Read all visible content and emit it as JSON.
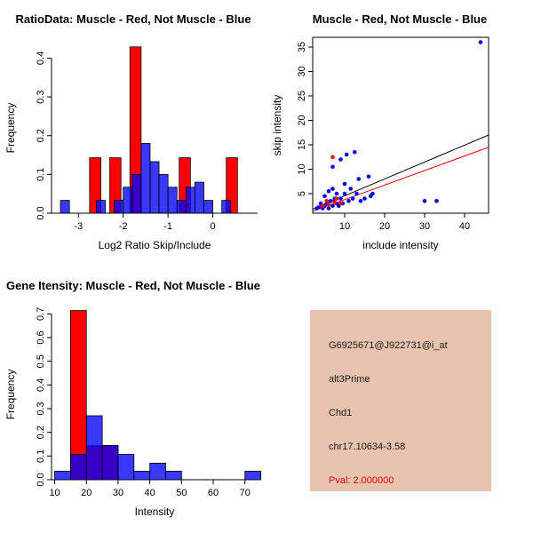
{
  "figure": {
    "background": "#FFFFFF"
  },
  "chart_data": [
    {
      "type": "bar",
      "title": "RatioData: Muscle - Red, Not Muscle - Blue",
      "xlabel": "Log2 Ratio Skip/Include",
      "ylabel": "Frequency",
      "xlim": [
        -3.6,
        1.0
      ],
      "ylim": [
        0,
        0.44
      ],
      "xticks": [
        -3,
        -2,
        -1,
        0
      ],
      "xtick_labels": [
        "-3",
        "-2",
        "-1",
        "0"
      ],
      "yticks": [
        0,
        0.1,
        0.2,
        0.3,
        0.4
      ],
      "ytick_labels": [
        "0.0",
        "0.1",
        "0.2",
        "0.3",
        "0.4"
      ],
      "grid": false,
      "series": [
        {
          "name": "Muscle",
          "color": "#FF0000",
          "opacity": 1,
          "bin_width": 0.25,
          "bars": [
            {
              "x": -2.75,
              "h": 0.143
            },
            {
              "x": -2.3,
              "h": 0.143
            },
            {
              "x": -1.85,
              "h": 0.429
            },
            {
              "x": -0.75,
              "h": 0.143
            },
            {
              "x": 0.3,
              "h": 0.143
            }
          ]
        },
        {
          "name": "Not Muscle",
          "color": "#0000FF",
          "opacity": 0.78,
          "bin_width": 0.2,
          "bars": [
            {
              "x": -3.4,
              "h": 0.033
            },
            {
              "x": -2.6,
              "h": 0.033
            },
            {
              "x": -2.2,
              "h": 0.033
            },
            {
              "x": -2.0,
              "h": 0.067
            },
            {
              "x": -1.8,
              "h": 0.1
            },
            {
              "x": -1.6,
              "h": 0.18
            },
            {
              "x": -1.4,
              "h": 0.133
            },
            {
              "x": -1.2,
              "h": 0.1
            },
            {
              "x": -1.0,
              "h": 0.067
            },
            {
              "x": -0.8,
              "h": 0.033
            },
            {
              "x": -0.6,
              "h": 0.067
            },
            {
              "x": -0.4,
              "h": 0.08
            },
            {
              "x": -0.2,
              "h": 0.033
            },
            {
              "x": 0.2,
              "h": 0.033
            }
          ]
        }
      ]
    },
    {
      "type": "scatter",
      "title": "Muscle - Red, Not Muscle - Blue",
      "xlabel": "include intensity",
      "ylabel": "skip intensity",
      "xlim": [
        2,
        46
      ],
      "ylim": [
        1,
        37
      ],
      "xticks": [
        10,
        20,
        30,
        40
      ],
      "yticks": [
        5,
        10,
        15,
        20,
        25,
        30,
        35
      ],
      "grid": false,
      "series": [
        {
          "name": "Not Muscle",
          "color": "#0000EE",
          "points": [
            [
              3,
              2
            ],
            [
              3.5,
              2.2
            ],
            [
              4,
              3
            ],
            [
              4.5,
              2
            ],
            [
              5,
              2.5
            ],
            [
              5,
              4.5
            ],
            [
              5.5,
              3
            ],
            [
              6,
              2
            ],
            [
              6,
              5.5
            ],
            [
              6.5,
              3.5
            ],
            [
              7,
              2.5
            ],
            [
              7,
              6
            ],
            [
              7,
              10.5
            ],
            [
              7.5,
              4
            ],
            [
              8,
              3
            ],
            [
              8,
              5
            ],
            [
              8.5,
              2.5
            ],
            [
              9,
              4
            ],
            [
              9,
              12
            ],
            [
              9.5,
              3
            ],
            [
              10,
              5
            ],
            [
              10,
              7
            ],
            [
              10.5,
              13
            ],
            [
              11,
              3.5
            ],
            [
              11.5,
              6
            ],
            [
              12,
              4
            ],
            [
              12.5,
              13.5
            ],
            [
              13,
              5
            ],
            [
              13.5,
              8
            ],
            [
              14,
              3.5
            ],
            [
              15,
              4
            ],
            [
              16,
              8.5
            ],
            [
              16.5,
              4.5
            ],
            [
              17,
              5
            ],
            [
              30,
              3.5
            ],
            [
              33,
              3.5
            ],
            [
              44,
              36
            ]
          ]
        },
        {
          "name": "Muscle",
          "color": "#FF0000",
          "points": [
            [
              4.5,
              2.5
            ],
            [
              5.5,
              3.5
            ],
            [
              6,
              2.8
            ],
            [
              7,
              12.5
            ],
            [
              7.5,
              3.2
            ],
            [
              8,
              4
            ],
            [
              9,
              3
            ]
          ]
        }
      ],
      "lines": [
        {
          "name": "fit-all",
          "color": "#000000",
          "from": [
            2,
            1.8
          ],
          "to": [
            46,
            17
          ]
        },
        {
          "name": "fit-muscle",
          "color": "#FF0000",
          "from": [
            2,
            1.4
          ],
          "to": [
            46,
            14.5
          ]
        }
      ]
    },
    {
      "type": "bar",
      "title": "Gene Itensity: Muscle - Red, Not Muscle - Blue",
      "xlabel": "Intensity",
      "ylabel": "Frequency",
      "xlim": [
        9,
        74
      ],
      "ylim": [
        0,
        0.72
      ],
      "xticks": [
        10,
        20,
        30,
        40,
        50,
        60,
        70
      ],
      "xtick_labels": [
        "10",
        "20",
        "30",
        "40",
        "50",
        "60",
        "70"
      ],
      "yticks": [
        0,
        0.1,
        0.2,
        0.3,
        0.4,
        0.5,
        0.6,
        0.7
      ],
      "ytick_labels": [
        "0.0",
        "0.1",
        "0.2",
        "0.3",
        "0.4",
        "0.5",
        "0.6",
        "0.7"
      ],
      "grid": false,
      "series": [
        {
          "name": "Muscle",
          "color": "#FF0000",
          "opacity": 1,
          "bin_width": 5,
          "bars": [
            {
              "x": 15,
              "h": 0.714
            },
            {
              "x": 20,
              "h": 0.143
            },
            {
              "x": 25,
              "h": 0.143
            }
          ]
        },
        {
          "name": "Not Muscle",
          "color": "#0000FF",
          "opacity": 0.78,
          "bin_width": 5,
          "bars": [
            {
              "x": 10,
              "h": 0.036
            },
            {
              "x": 15,
              "h": 0.107
            },
            {
              "x": 20,
              "h": 0.27
            },
            {
              "x": 25,
              "h": 0.145
            },
            {
              "x": 30,
              "h": 0.107
            },
            {
              "x": 35,
              "h": 0.036
            },
            {
              "x": 40,
              "h": 0.07
            },
            {
              "x": 45,
              "h": 0.036
            },
            {
              "x": 70,
              "h": 0.036
            }
          ]
        }
      ]
    }
  ],
  "info_box": {
    "background": "#E8C3B0",
    "text_color": "#1A1A1A",
    "pval_color": "#EE0000",
    "lines": [
      "G6925671@J922731@i_at",
      "alt3Prime",
      "Chd1",
      "chr17.10634-3.58"
    ],
    "pval": "Pval: 2.000000"
  }
}
